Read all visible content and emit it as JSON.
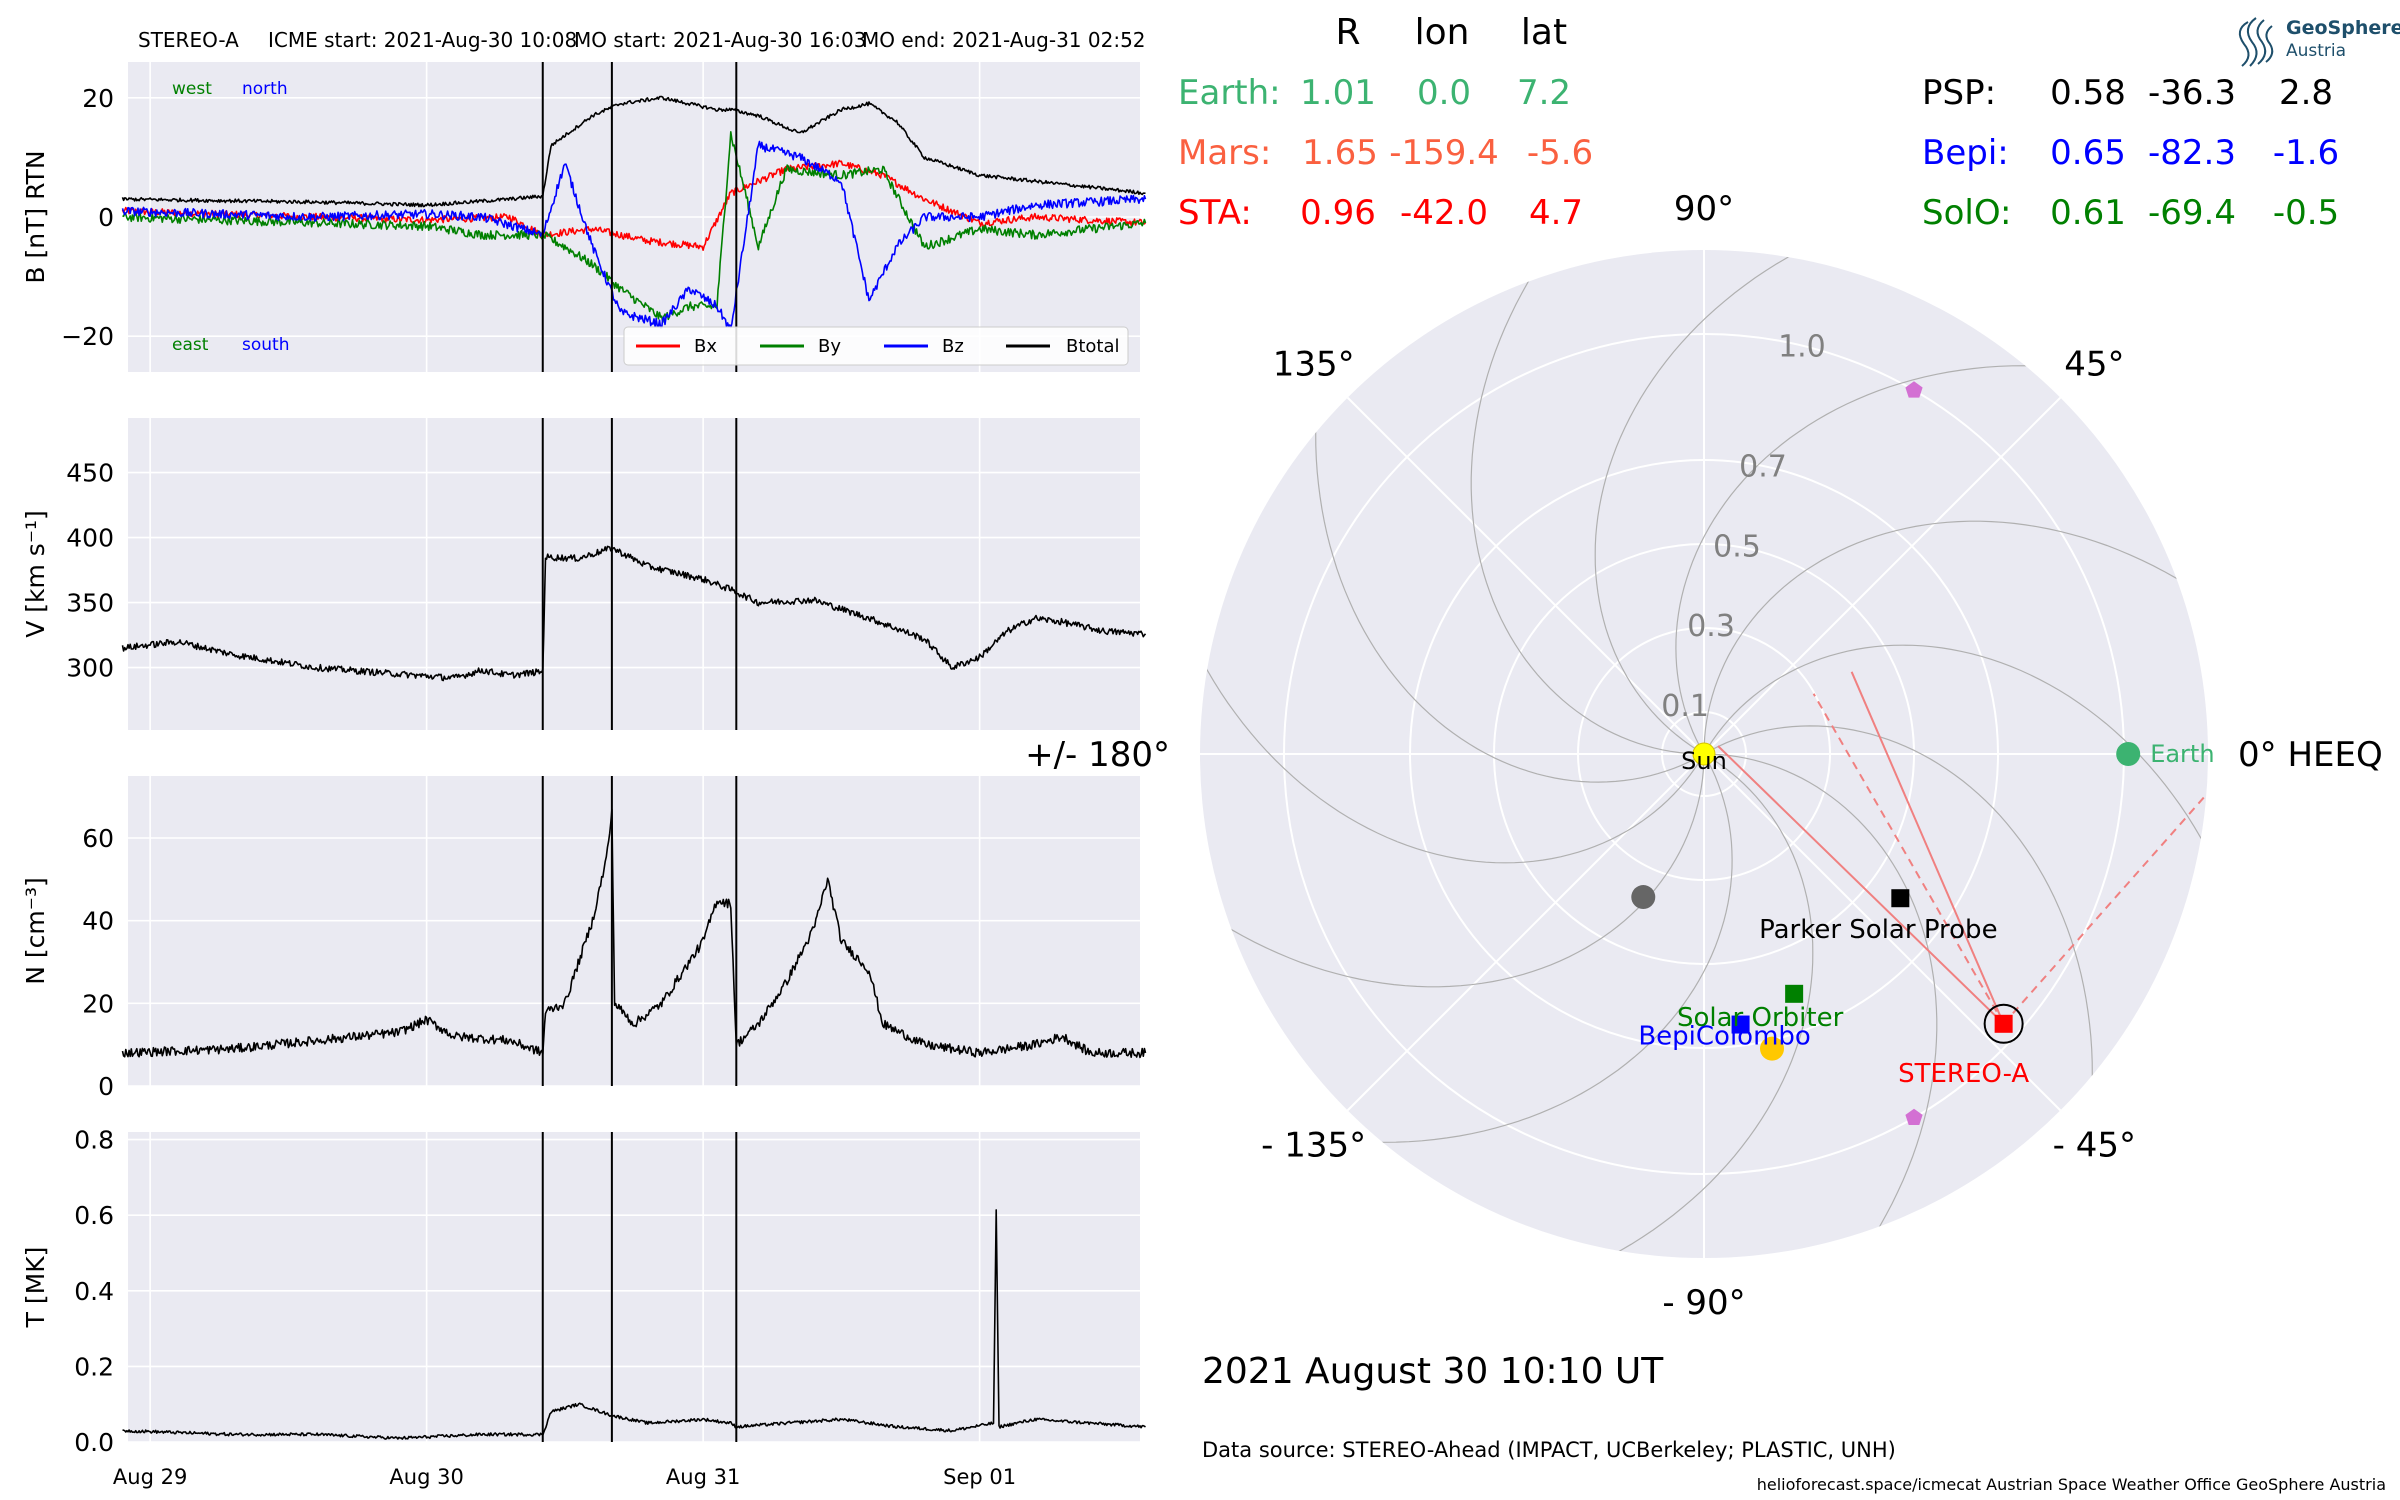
{
  "header": {
    "spacecraft": "STEREO-A",
    "icme_start": "ICME start: 2021-Aug-30 10:08",
    "mo_start": "MO start: 2021-Aug-30 16:03",
    "mo_end": "MO end: 2021-Aug-31 02:52"
  },
  "logo": {
    "line1": "GeoSphere",
    "line2": "Austria"
  },
  "positions_table": {
    "headers": [
      "R",
      "lon",
      "lat"
    ],
    "left": [
      {
        "label": "Earth:",
        "R": "1.01",
        "lon": "0.0",
        "lat": "7.2",
        "color": "#3cb371"
      },
      {
        "label": "Mars:",
        "R": "1.65",
        "lon": "-159.4",
        "lat": "-5.6",
        "color": "#fa6040"
      },
      {
        "label": "STA:",
        "R": "0.96",
        "lon": "-42.0",
        "lat": "4.7",
        "color": "#ff0000"
      }
    ],
    "right": [
      {
        "label": "PSP:",
        "R": "0.58",
        "lon": "-36.3",
        "lat": "2.8",
        "color": "#000000"
      },
      {
        "label": "Bepi:",
        "R": "0.65",
        "lon": "-82.3",
        "lat": "-1.6",
        "color": "#0000ff"
      },
      {
        "label": "SolO:",
        "R": "0.61",
        "lon": "-69.4",
        "lat": "-0.5",
        "color": "#008000"
      }
    ]
  },
  "timestamp": "2021 August 30  10:10 UT",
  "data_source": "Data source: STEREO-Ahead (IMPACT, UCBerkeley; PLASTIC, UNH)",
  "footer": "helioforecast.space/icmecat   Austrian Space Weather Office   GeoSphere Austria",
  "chart_data": [
    {
      "type": "line",
      "panel": "magnetic-field",
      "ylabel": "B [nT] RTN",
      "ylim": [
        -26,
        26
      ],
      "yticks": [
        -20,
        0,
        20
      ],
      "annotations": {
        "top_left": [
          "west",
          "north"
        ],
        "bottom_left": [
          "east",
          "south"
        ]
      },
      "legend": {
        "placement": "bottom-right",
        "entries": [
          "Bx",
          "By",
          "Bz",
          "Btotal"
        ]
      },
      "x_unit": "days since 2021-08-29 00:00",
      "series": [
        {
          "name": "Bx",
          "color": "#ff0000",
          "points": [
            [
              -0.1,
              1
            ],
            [
              0.6,
              0
            ],
            [
              1.0,
              -0.5
            ],
            [
              1.3,
              0
            ],
            [
              1.42,
              -3
            ],
            [
              1.6,
              -2
            ],
            [
              1.8,
              -4
            ],
            [
              2.0,
              -5
            ],
            [
              2.1,
              4
            ],
            [
              2.3,
              8
            ],
            [
              2.5,
              9
            ],
            [
              2.65,
              7
            ],
            [
              2.8,
              3
            ],
            [
              3.0,
              -1
            ],
            [
              3.2,
              0
            ],
            [
              3.6,
              -1
            ]
          ]
        },
        {
          "name": "By",
          "color": "#008000",
          "points": [
            [
              -0.1,
              0
            ],
            [
              0.6,
              -1
            ],
            [
              1.0,
              -1.5
            ],
            [
              1.2,
              -3
            ],
            [
              1.42,
              -3
            ],
            [
              1.5,
              -5
            ],
            [
              1.6,
              -8
            ],
            [
              1.7,
              -12
            ],
            [
              1.85,
              -17
            ],
            [
              1.95,
              -15
            ],
            [
              2.05,
              -15
            ],
            [
              2.1,
              14
            ],
            [
              2.2,
              -5
            ],
            [
              2.3,
              8
            ],
            [
              2.5,
              7
            ],
            [
              2.65,
              8
            ],
            [
              2.8,
              -5
            ],
            [
              3.0,
              -2
            ],
            [
              3.2,
              -3
            ],
            [
              3.6,
              -1
            ]
          ]
        },
        {
          "name": "Bz",
          "color": "#0000ff",
          "points": [
            [
              -0.1,
              1
            ],
            [
              0.6,
              0
            ],
            [
              1.0,
              0.5
            ],
            [
              1.2,
              0
            ],
            [
              1.42,
              -3
            ],
            [
              1.5,
              9
            ],
            [
              1.6,
              -5
            ],
            [
              1.7,
              -16
            ],
            [
              1.85,
              -18
            ],
            [
              1.95,
              -12
            ],
            [
              2.05,
              -15
            ],
            [
              2.1,
              -19
            ],
            [
              2.2,
              12
            ],
            [
              2.35,
              10
            ],
            [
              2.5,
              6
            ],
            [
              2.6,
              -14
            ],
            [
              2.7,
              -5
            ],
            [
              2.8,
              0
            ],
            [
              3.0,
              0
            ],
            [
              3.2,
              2
            ],
            [
              3.6,
              3
            ]
          ]
        },
        {
          "name": "Btotal",
          "color": "#000000",
          "points": [
            [
              -0.1,
              3
            ],
            [
              0.6,
              2.5
            ],
            [
              1.0,
              2
            ],
            [
              1.3,
              3
            ],
            [
              1.42,
              3.5
            ],
            [
              1.45,
              12
            ],
            [
              1.6,
              17
            ],
            [
              1.7,
              19
            ],
            [
              1.85,
              20
            ],
            [
              1.95,
              19
            ],
            [
              2.05,
              18
            ],
            [
              2.1,
              18
            ],
            [
              2.2,
              17
            ],
            [
              2.35,
              14
            ],
            [
              2.5,
              18
            ],
            [
              2.6,
              19
            ],
            [
              2.7,
              16
            ],
            [
              2.8,
              10
            ],
            [
              3.0,
              7
            ],
            [
              3.2,
              6
            ],
            [
              3.6,
              4
            ]
          ]
        }
      ]
    },
    {
      "type": "line",
      "panel": "speed",
      "ylabel": "V [km s⁻¹]",
      "ylim": [
        252,
        492
      ],
      "yticks": [
        300,
        350,
        400,
        450
      ],
      "x_unit": "days since 2021-08-29 00:00",
      "series": [
        {
          "name": "",
          "color": "#000000",
          "points": [
            [
              -0.1,
              315
            ],
            [
              0.1,
              320
            ],
            [
              0.3,
              310
            ],
            [
              0.6,
              300
            ],
            [
              0.9,
              295
            ],
            [
              1.1,
              292
            ],
            [
              1.2,
              298
            ],
            [
              1.3,
              294
            ],
            [
              1.42,
              297
            ],
            [
              1.43,
              385
            ],
            [
              1.55,
              384
            ],
            [
              1.67,
              392
            ],
            [
              1.8,
              378
            ],
            [
              2.0,
              368
            ],
            [
              2.1,
              360
            ],
            [
              2.2,
              350
            ],
            [
              2.4,
              352
            ],
            [
              2.6,
              338
            ],
            [
              2.8,
              322
            ],
            [
              2.9,
              300
            ],
            [
              3.0,
              308
            ],
            [
              3.1,
              328
            ],
            [
              3.2,
              338
            ],
            [
              3.3,
              335
            ],
            [
              3.45,
              328
            ],
            [
              3.6,
              326
            ]
          ]
        }
      ]
    },
    {
      "type": "line",
      "panel": "density",
      "ylabel": "N [cm⁻³]",
      "ylim": [
        0,
        75
      ],
      "yticks": [
        0,
        20,
        40,
        60
      ],
      "x_unit": "days since 2021-08-29 00:00",
      "series": [
        {
          "name": "",
          "color": "#000000",
          "points": [
            [
              -0.1,
              8
            ],
            [
              0.3,
              9
            ],
            [
              0.6,
              11
            ],
            [
              0.9,
              13
            ],
            [
              1.0,
              16
            ],
            [
              1.1,
              12
            ],
            [
              1.3,
              11
            ],
            [
              1.42,
              8
            ],
            [
              1.43,
              18
            ],
            [
              1.5,
              20
            ],
            [
              1.6,
              40
            ],
            [
              1.65,
              55
            ],
            [
              1.67,
              66
            ],
            [
              1.68,
              20
            ],
            [
              1.75,
              15
            ],
            [
              1.85,
              20
            ],
            [
              2.0,
              35
            ],
            [
              2.05,
              45
            ],
            [
              2.1,
              44
            ],
            [
              2.12,
              10
            ],
            [
              2.2,
              15
            ],
            [
              2.3,
              25
            ],
            [
              2.4,
              38
            ],
            [
              2.45,
              50
            ],
            [
              2.5,
              35
            ],
            [
              2.6,
              28
            ],
            [
              2.65,
              15
            ],
            [
              2.8,
              10
            ],
            [
              3.0,
              8
            ],
            [
              3.2,
              10
            ],
            [
              3.3,
              12
            ],
            [
              3.4,
              8
            ],
            [
              3.6,
              8
            ]
          ]
        }
      ]
    },
    {
      "type": "line",
      "panel": "temperature",
      "ylabel": "T [MK]",
      "ylim": [
        0,
        0.82
      ],
      "yticks": [
        0.0,
        0.2,
        0.4,
        0.6,
        0.8
      ],
      "x_unit": "days since 2021-08-29 00:00",
      "xticks": [
        {
          "label": "Aug 29",
          "x": 0
        },
        {
          "label": "Aug 30",
          "x": 1
        },
        {
          "label": "Aug 31",
          "x": 2
        },
        {
          "label": "Sep 01",
          "x": 3
        }
      ],
      "xlim": [
        -0.08,
        3.58
      ],
      "vlines": [
        1.42,
        1.67,
        2.12
      ],
      "series": [
        {
          "name": "",
          "color": "#000000",
          "points": [
            [
              -0.1,
              0.03
            ],
            [
              0.3,
              0.02
            ],
            [
              0.6,
              0.02
            ],
            [
              0.9,
              0.01
            ],
            [
              1.2,
              0.02
            ],
            [
              1.42,
              0.02
            ],
            [
              1.45,
              0.08
            ],
            [
              1.55,
              0.1
            ],
            [
              1.67,
              0.07
            ],
            [
              1.8,
              0.05
            ],
            [
              2.0,
              0.06
            ],
            [
              2.1,
              0.05
            ],
            [
              2.12,
              0.04
            ],
            [
              2.3,
              0.05
            ],
            [
              2.5,
              0.06
            ],
            [
              2.7,
              0.04
            ],
            [
              2.9,
              0.03
            ],
            [
              3.05,
              0.05
            ],
            [
              3.06,
              0.61
            ],
            [
              3.07,
              0.04
            ],
            [
              3.2,
              0.06
            ],
            [
              3.4,
              0.05
            ],
            [
              3.6,
              0.04
            ]
          ]
        }
      ]
    },
    {
      "type": "scatter",
      "panel": "polar-positions",
      "coordinate_system": "0° HEEQ",
      "radial_ticks": [
        "0.1",
        "0.3",
        "0.5",
        "0.7",
        "1.0"
      ],
      "radial_values": [
        0.1,
        0.3,
        0.5,
        0.7,
        1.0
      ],
      "r_max": 1.2,
      "angle_labels": [
        {
          "text": "0° HEEQ",
          "deg": 0
        },
        {
          "text": "45°",
          "deg": 45
        },
        {
          "text": "90°",
          "deg": 90
        },
        {
          "text": "135°",
          "deg": 135
        },
        {
          "text": "+/- 180°",
          "deg": 180
        },
        {
          "text": "- 135°",
          "deg": -135
        },
        {
          "text": "- 90°",
          "deg": -90
        },
        {
          "text": "- 45°",
          "deg": -45
        }
      ],
      "objects": [
        {
          "name": "Sun",
          "label": "Sun",
          "r": 0,
          "lon": 0,
          "marker": "circle",
          "color": "#ffff00"
        },
        {
          "name": "Earth",
          "label": "Earth",
          "r": 1.01,
          "lon": 0.0,
          "marker": "circle",
          "color": "#3cb371"
        },
        {
          "name": "STEREO-A",
          "label": "STEREO-A",
          "r": 0.96,
          "lon": -42.0,
          "marker": "square",
          "color": "#ff0000"
        },
        {
          "name": "Parker Solar Probe",
          "label": "Parker Solar Probe",
          "r": 0.58,
          "lon": -36.3,
          "marker": "square",
          "color": "#000000"
        },
        {
          "name": "BepiColombo",
          "label": "BepiColombo",
          "r": 0.65,
          "lon": -82.3,
          "marker": "square",
          "color": "#0000ff"
        },
        {
          "name": "Solar Orbiter",
          "label": "Solar Orbiter",
          "r": 0.61,
          "lon": -69.4,
          "marker": "square",
          "color": "#008000"
        },
        {
          "name": "Mercury",
          "label": "",
          "r": 0.37,
          "lon": -113,
          "marker": "circle",
          "color": "#666666"
        },
        {
          "name": "Venus",
          "label": "",
          "r": 0.72,
          "lon": -77,
          "marker": "circle",
          "color": "#ffc800"
        },
        {
          "name": "L4",
          "label": "",
          "r": 1.0,
          "lon": 60,
          "marker": "pentagon",
          "color": "#d370d3"
        },
        {
          "name": "L5",
          "label": "",
          "r": 1.0,
          "lon": -60,
          "marker": "pentagon",
          "color": "#d370d3"
        }
      ],
      "sta_fov_lines_deg": [
        12,
        22,
        28,
        48
      ],
      "colors": {
        "background": "#eaeaf2",
        "grid": "#ffffff",
        "spiral": "#b0b0b0",
        "fov": "#f08080"
      }
    }
  ]
}
